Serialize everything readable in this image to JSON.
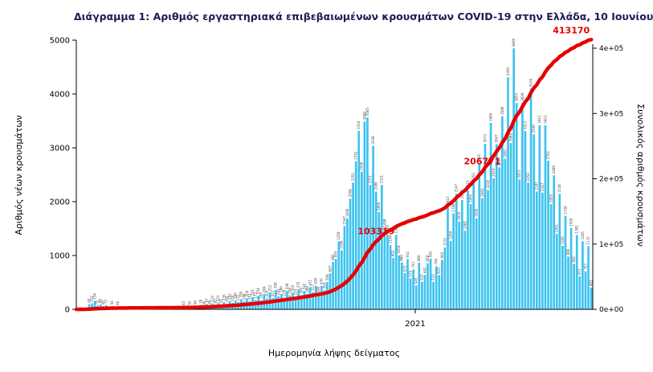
{
  "title": "Διάγραμμα 1: Αριθμός εργαστηριακά επιβεβαιωμένων κρουσμάτων COVID-19 στην Ελλάδα, 10 Ιουνίου 2021",
  "chart_data": {
    "type": "bar",
    "title": "Διάγραμμα 1: Αριθμός εργαστηριακά επιβεβαιωμένων κρουσμάτων COVID-19 στην Ελλάδα, 10 Ιουνίου 2021",
    "x_axis": {
      "label": "Ημερομηνία λήψης δείγματος",
      "tick_labels": [
        "2021"
      ]
    },
    "left_axis": {
      "label": "Αριθμός νέων κρουσμάτων",
      "ticks": [
        0,
        1000,
        2000,
        3000,
        4000,
        5000
      ],
      "lim": [
        0,
        5000
      ]
    },
    "right_axis": {
      "label": "Συνολικός αριθμός κρουσμάτων",
      "tick_labels": [
        "0e+00",
        "1e+05",
        "2e+05",
        "3e+05",
        "4e+05"
      ],
      "tick_values": [
        0,
        100000,
        200000,
        300000,
        400000
      ],
      "lim": [
        0,
        400000
      ]
    },
    "legend": "none",
    "grid": false,
    "series": [
      {
        "name": "daily-new-cases",
        "type": "bar",
        "color": "#3ec3f0",
        "values": [
          3,
          7,
          21,
          31,
          95,
          110,
          156,
          71,
          89,
          60,
          77,
          33,
          56,
          28,
          46,
          15,
          30,
          10,
          19,
          8,
          21,
          12,
          16,
          10,
          13,
          6,
          19,
          9,
          24,
          11,
          15,
          7,
          18,
          10,
          22,
          14,
          19,
          43,
          29,
          52,
          24,
          58,
          31,
          78,
          50,
          97,
          65,
          110,
          83,
          121,
          92,
          135,
          104,
          152,
          118,
          166,
          131,
          190,
          148,
          204,
          151,
          225,
          172,
          254,
          169,
          284,
          203,
          312,
          207,
          358,
          241,
          286,
          218,
          338,
          259,
          310,
          233,
          372,
          265,
          342,
          289,
          411,
          317,
          438,
          280,
          435,
          354,
          508,
          667,
          882,
          935,
          1259,
          1096,
          1547,
          1690,
          2056,
          2353,
          2752,
          3316,
          2556,
          3489,
          3565,
          2311,
          3038,
          2186,
          1806,
          2311,
          1498,
          1383,
          1194,
          952,
          1383,
          1004,
          869,
          672,
          932,
          575,
          741,
          445,
          866,
          510,
          641,
          858,
          941,
          510,
          799,
          633,
          920,
          1151,
          1913,
          1269,
          1784,
          2147,
          1630,
          2032,
          1460,
          2215,
          1955,
          2353,
          1690,
          2702,
          2064,
          3073,
          2219,
          3465,
          2434,
          3067,
          2636,
          3586,
          2801,
          4309,
          3089,
          4849,
          3833,
          2411,
          3839,
          3313,
          2353,
          4105,
          3249,
          2187,
          3421,
          2167,
          3421,
          2761,
          1955,
          2489,
          1401,
          2146,
          1181,
          1738,
          980,
          1508,
          842,
          1381,
          612,
          1265,
          707,
          1172,
          403
        ]
      },
      {
        "name": "cumulative-cases",
        "type": "line",
        "color": "#e60000",
        "final_total": 413170,
        "milestone_labels": [
          "103319",
          "206771",
          "413170"
        ]
      }
    ]
  }
}
